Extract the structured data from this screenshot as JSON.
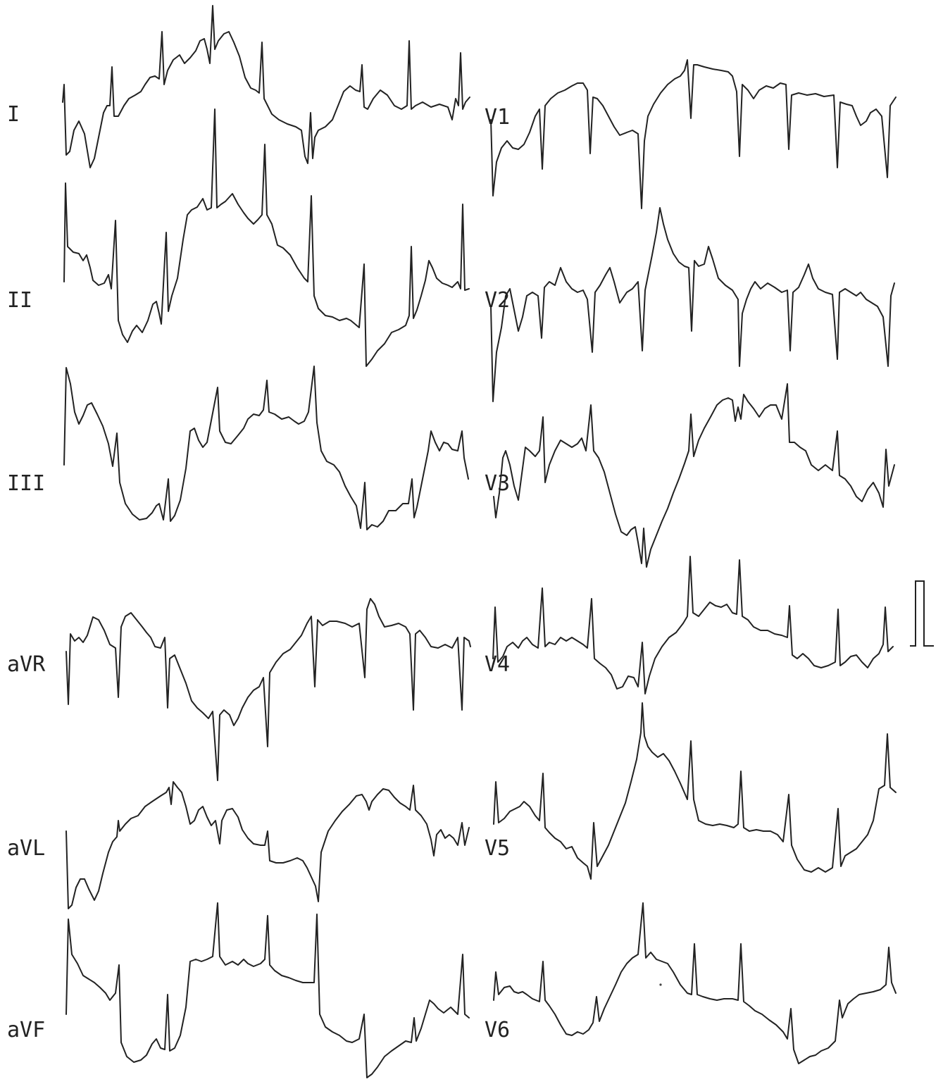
{
  "leads": {
    "I": "I",
    "II": "II",
    "III": "III",
    "aVR": "aVR",
    "aVL": "aVL",
    "aVF": "aVF",
    "V1": "V1",
    "V2": "V2",
    "V3": "V3",
    "V4": "V4",
    "V5": "V5",
    "V6": "V6"
  },
  "colors": {
    "ink": "#222222",
    "paper": "#ffffff"
  }
}
